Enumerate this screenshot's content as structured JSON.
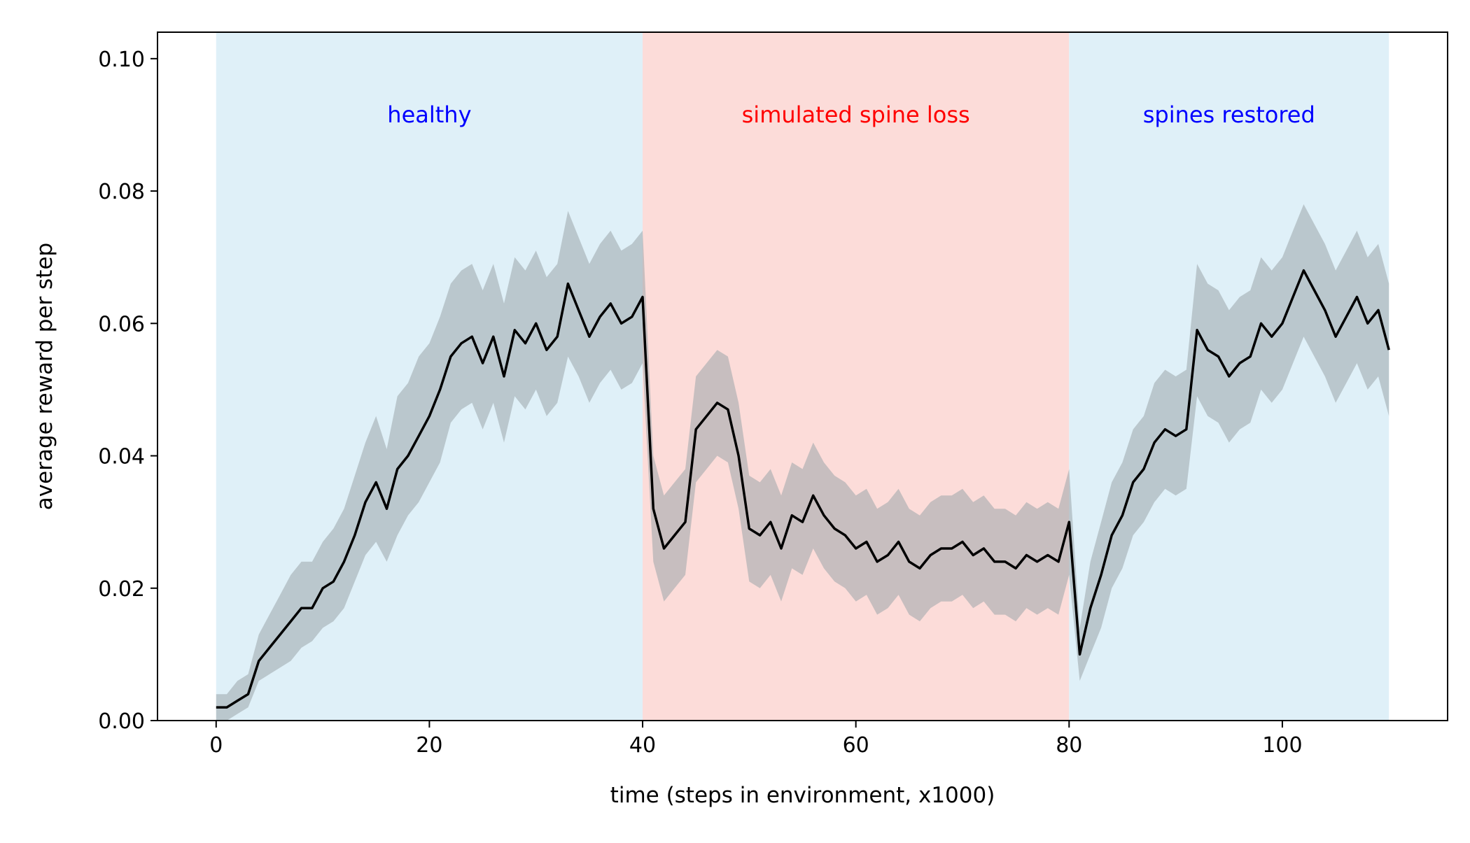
{
  "chart_data": {
    "type": "line",
    "title": "",
    "xlabel": "time (steps in environment, x1000)",
    "ylabel": "average reward per step",
    "xlim": [
      -5.5,
      115.5
    ],
    "ylim": [
      0.0,
      0.104
    ],
    "x_ticks": [
      0,
      20,
      40,
      60,
      80,
      100
    ],
    "y_ticks": [
      0.0,
      0.02,
      0.04,
      0.06,
      0.08,
      0.1
    ],
    "x_tick_labels": [
      "0",
      "20",
      "40",
      "60",
      "80",
      "100"
    ],
    "y_tick_labels": [
      "0.00",
      "0.02",
      "0.04",
      "0.06",
      "0.08",
      "0.10"
    ],
    "grid": false,
    "regions": [
      {
        "label": "healthy",
        "x_start": 0,
        "x_end": 40,
        "color": "#dff0f8",
        "label_color": "#0000ff"
      },
      {
        "label": "simulated spine loss",
        "x_start": 40,
        "x_end": 80,
        "color": "#fcdcd9",
        "label_color": "#ff0000"
      },
      {
        "label": "spines restored",
        "x_start": 80,
        "x_end": 110,
        "color": "#dff0f8",
        "label_color": "#0000ff"
      }
    ],
    "series": [
      {
        "color": "#000000",
        "band_color": "#9aa5aa",
        "x": [
          0,
          1,
          2,
          3,
          4,
          5,
          6,
          7,
          8,
          9,
          10,
          11,
          12,
          13,
          14,
          15,
          16,
          17,
          18,
          19,
          20,
          21,
          22,
          23,
          24,
          25,
          26,
          27,
          28,
          29,
          30,
          31,
          32,
          33,
          34,
          35,
          36,
          37,
          38,
          39,
          40,
          41,
          42,
          43,
          44,
          45,
          46,
          47,
          48,
          49,
          50,
          51,
          52,
          53,
          54,
          55,
          56,
          57,
          58,
          59,
          60,
          61,
          62,
          63,
          64,
          65,
          66,
          67,
          68,
          69,
          70,
          71,
          72,
          73,
          74,
          75,
          76,
          77,
          78,
          79,
          80,
          81,
          82,
          83,
          84,
          85,
          86,
          87,
          88,
          89,
          90,
          91,
          92,
          93,
          94,
          95,
          96,
          97,
          98,
          99,
          100,
          101,
          102,
          103,
          104,
          105,
          106,
          107,
          108,
          109,
          110
        ],
        "y": [
          0.002,
          0.002,
          0.003,
          0.004,
          0.009,
          0.011,
          0.013,
          0.015,
          0.017,
          0.017,
          0.02,
          0.021,
          0.024,
          0.028,
          0.033,
          0.036,
          0.032,
          0.038,
          0.04,
          0.043,
          0.046,
          0.05,
          0.055,
          0.057,
          0.058,
          0.054,
          0.058,
          0.052,
          0.059,
          0.057,
          0.06,
          0.056,
          0.058,
          0.066,
          0.062,
          0.058,
          0.061,
          0.063,
          0.06,
          0.061,
          0.064,
          0.032,
          0.026,
          0.028,
          0.03,
          0.044,
          0.046,
          0.048,
          0.047,
          0.04,
          0.029,
          0.028,
          0.03,
          0.026,
          0.031,
          0.03,
          0.034,
          0.031,
          0.029,
          0.028,
          0.026,
          0.027,
          0.024,
          0.025,
          0.027,
          0.024,
          0.023,
          0.025,
          0.026,
          0.026,
          0.027,
          0.025,
          0.026,
          0.024,
          0.024,
          0.023,
          0.025,
          0.024,
          0.025,
          0.024,
          0.03,
          0.01,
          0.017,
          0.022,
          0.028,
          0.031,
          0.036,
          0.038,
          0.042,
          0.044,
          0.043,
          0.044,
          0.059,
          0.056,
          0.055,
          0.052,
          0.054,
          0.055,
          0.06,
          0.058,
          0.06,
          0.064,
          0.068,
          0.065,
          0.062,
          0.058,
          0.061,
          0.064,
          0.06,
          0.062,
          0.056
        ],
        "band_low": [
          0.0,
          0.0,
          0.001,
          0.002,
          0.006,
          0.007,
          0.008,
          0.009,
          0.011,
          0.012,
          0.014,
          0.015,
          0.017,
          0.021,
          0.025,
          0.027,
          0.024,
          0.028,
          0.031,
          0.033,
          0.036,
          0.039,
          0.045,
          0.047,
          0.048,
          0.044,
          0.048,
          0.042,
          0.049,
          0.047,
          0.05,
          0.046,
          0.048,
          0.055,
          0.052,
          0.048,
          0.051,
          0.053,
          0.05,
          0.051,
          0.054,
          0.024,
          0.018,
          0.02,
          0.022,
          0.036,
          0.038,
          0.04,
          0.039,
          0.032,
          0.021,
          0.02,
          0.022,
          0.018,
          0.023,
          0.022,
          0.026,
          0.023,
          0.021,
          0.02,
          0.018,
          0.019,
          0.016,
          0.017,
          0.019,
          0.016,
          0.015,
          0.017,
          0.018,
          0.018,
          0.019,
          0.017,
          0.018,
          0.016,
          0.016,
          0.015,
          0.017,
          0.016,
          0.017,
          0.016,
          0.022,
          0.006,
          0.01,
          0.014,
          0.02,
          0.023,
          0.028,
          0.03,
          0.033,
          0.035,
          0.034,
          0.035,
          0.049,
          0.046,
          0.045,
          0.042,
          0.044,
          0.045,
          0.05,
          0.048,
          0.05,
          0.054,
          0.058,
          0.055,
          0.052,
          0.048,
          0.051,
          0.054,
          0.05,
          0.052,
          0.046
        ],
        "band_high": [
          0.004,
          0.004,
          0.006,
          0.007,
          0.013,
          0.016,
          0.019,
          0.022,
          0.024,
          0.024,
          0.027,
          0.029,
          0.032,
          0.037,
          0.042,
          0.046,
          0.041,
          0.049,
          0.051,
          0.055,
          0.057,
          0.061,
          0.066,
          0.068,
          0.069,
          0.065,
          0.069,
          0.063,
          0.07,
          0.068,
          0.071,
          0.067,
          0.069,
          0.077,
          0.073,
          0.069,
          0.072,
          0.074,
          0.071,
          0.072,
          0.074,
          0.04,
          0.034,
          0.036,
          0.038,
          0.052,
          0.054,
          0.056,
          0.055,
          0.048,
          0.037,
          0.036,
          0.038,
          0.034,
          0.039,
          0.038,
          0.042,
          0.039,
          0.037,
          0.036,
          0.034,
          0.035,
          0.032,
          0.033,
          0.035,
          0.032,
          0.031,
          0.033,
          0.034,
          0.034,
          0.035,
          0.033,
          0.034,
          0.032,
          0.032,
          0.031,
          0.033,
          0.032,
          0.033,
          0.032,
          0.038,
          0.014,
          0.024,
          0.03,
          0.036,
          0.039,
          0.044,
          0.046,
          0.051,
          0.053,
          0.052,
          0.053,
          0.069,
          0.066,
          0.065,
          0.062,
          0.064,
          0.065,
          0.07,
          0.068,
          0.07,
          0.074,
          0.078,
          0.075,
          0.072,
          0.068,
          0.071,
          0.074,
          0.07,
          0.072,
          0.066
        ]
      }
    ]
  }
}
